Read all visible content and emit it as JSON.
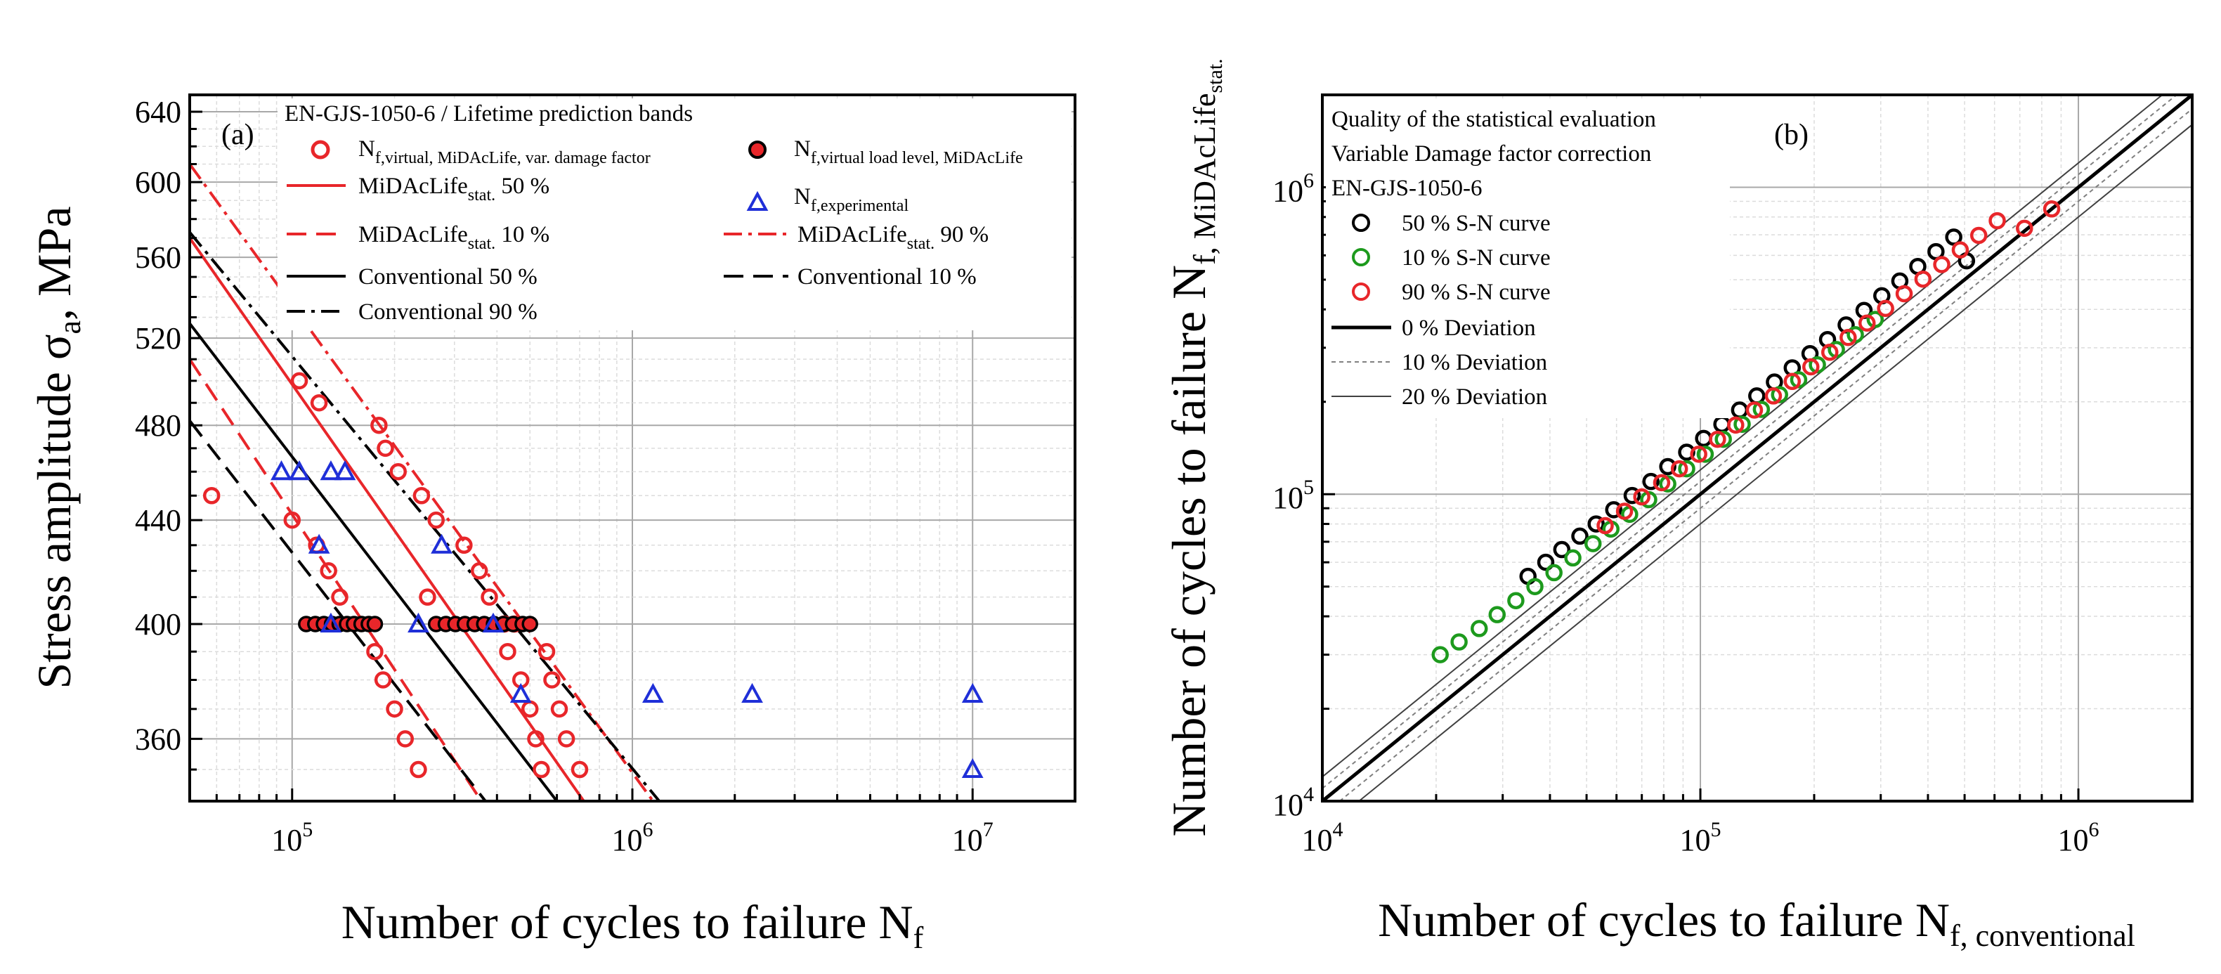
{
  "chart_data": [
    {
      "panel": "a",
      "type": "scatter",
      "panel_label": "(a)",
      "title": "EN-GJS-1050-6 / Lifetime prediction bands",
      "xlabel": "Number of cycles to failure N",
      "xlabel_sub": "f",
      "ylabel": "Stress amplitude σ",
      "ylabel_sub": "a",
      "ylabel_suffix": ", MPa",
      "x_scale": "log",
      "y_scale": "log",
      "xlim": [
        50000,
        20000000
      ],
      "ylim": [
        340,
        650
      ],
      "x_ticks": [
        {
          "value": 100000,
          "base": "10",
          "exp": "5"
        },
        {
          "value": 1000000,
          "base": "10",
          "exp": "6"
        },
        {
          "value": 10000000,
          "base": "10",
          "exp": "7"
        }
      ],
      "y_ticks": [
        360,
        400,
        440,
        480,
        520,
        560,
        600,
        640
      ],
      "y_tick_labels": [
        "360",
        "400",
        "440",
        "480",
        "520",
        "560",
        "600",
        "640"
      ],
      "legend": {
        "placement": "top",
        "entries": [
          {
            "main": "N",
            "sub": "f,virtual, MiDAcLife, var. damage factor",
            "style": "red-circle",
            "color": "#e8262a"
          },
          {
            "main": "N",
            "sub": "f,virtual load level, MiDAcLife",
            "style": "black-filled-circle",
            "color": "#e8262a"
          },
          {
            "main": "MiDAcLife",
            "sub": "stat.",
            "after": " 50 %",
            "style": "red-solid",
            "color": "#e8262a"
          },
          {
            "main": "N",
            "sub": "f,experimental",
            "style": "blue-triangle",
            "color": "#1f2fd8"
          },
          {
            "main": "MiDAcLife",
            "sub": "stat.",
            "after": " 10 %",
            "style": "red-dash",
            "color": "#e8262a"
          },
          {
            "main": "MiDAcLife",
            "sub": "stat.",
            "after": " 90 %",
            "style": "red-dashdot",
            "color": "#e8262a"
          },
          {
            "main": "Conventional 50 %",
            "sub": "",
            "after": "",
            "style": "black-solid",
            "color": "#000000"
          },
          {
            "main": "Conventional 10 %",
            "sub": "",
            "after": "",
            "style": "black-dash",
            "color": "#000000"
          },
          {
            "main": "Conventional 90 %",
            "sub": "",
            "after": "",
            "style": "black-dashdot",
            "color": "#000000"
          }
        ]
      },
      "lines": [
        {
          "name": "MiDAcLife stat. 50 %",
          "color": "#e8262a",
          "dash": "solid",
          "points": [
            [
              50000,
              570
            ],
            [
              720000,
              340
            ]
          ]
        },
        {
          "name": "MiDAcLife stat. 10 %",
          "color": "#e8262a",
          "dash": "dash",
          "points": [
            [
              50000,
              510
            ],
            [
              360000,
              340
            ]
          ]
        },
        {
          "name": "MiDAcLife stat. 90 %",
          "color": "#e8262a",
          "dash": "dashdot",
          "points": [
            [
              50000,
              610
            ],
            [
              1150000,
              340
            ]
          ]
        },
        {
          "name": "Conventional 50 %",
          "color": "#000000",
          "dash": "solid",
          "points": [
            [
              50000,
              527
            ],
            [
              600000,
              340
            ]
          ]
        },
        {
          "name": "Conventional 10 %",
          "color": "#000000",
          "dash": "dash",
          "points": [
            [
              50000,
              482
            ],
            [
              370000,
              340
            ]
          ]
        },
        {
          "name": "Conventional 90 %",
          "color": "#000000",
          "dash": "dashdot",
          "points": [
            [
              50000,
              573
            ],
            [
              1200000,
              340
            ]
          ]
        }
      ],
      "series": [
        {
          "name": "N f,virtual, MiDAcLife, var. damage factor",
          "marker": "open-circle",
          "color": "#e8262a",
          "points": [
            [
              58000,
              450
            ],
            [
              105000,
              500
            ],
            [
              120000,
              490
            ],
            [
              100000,
              440
            ],
            [
              118000,
              430
            ],
            [
              128000,
              420
            ],
            [
              138000,
              410
            ],
            [
              175000,
              390
            ],
            [
              185000,
              380
            ],
            [
              200000,
              370
            ],
            [
              215000,
              360
            ],
            [
              235000,
              350
            ],
            [
              180000,
              480
            ],
            [
              188000,
              470
            ],
            [
              205000,
              460
            ],
            [
              240000,
              450
            ],
            [
              265000,
              440
            ],
            [
              320000,
              430
            ],
            [
              355000,
              420
            ],
            [
              380000,
              410
            ],
            [
              430000,
              390
            ],
            [
              470000,
              380
            ],
            [
              500000,
              370
            ],
            [
              520000,
              360
            ],
            [
              540000,
              350
            ],
            [
              560000,
              390
            ],
            [
              580000,
              380
            ],
            [
              610000,
              370
            ],
            [
              640000,
              360
            ],
            [
              700000,
              350
            ],
            [
              250000,
              410
            ],
            [
              420000,
              400
            ],
            [
              450000,
              400
            ]
          ]
        },
        {
          "name": "N f,virtual load level, MiDAcLife",
          "marker": "filled-circle",
          "color": "#e8262a",
          "points": [
            [
              110000,
              400
            ],
            [
              117000,
              400
            ],
            [
              124000,
              400
            ],
            [
              131000,
              400
            ],
            [
              138000,
              400
            ],
            [
              145000,
              400
            ],
            [
              152000,
              400
            ],
            [
              160000,
              400
            ],
            [
              168000,
              400
            ],
            [
              175000,
              400
            ],
            [
              265000,
              400
            ],
            [
              283000,
              400
            ],
            [
              302000,
              400
            ],
            [
              322000,
              400
            ],
            [
              344000,
              400
            ],
            [
              367000,
              400
            ],
            [
              392000,
              400
            ],
            [
              418000,
              400
            ],
            [
              446000,
              400
            ],
            [
              476000,
              400
            ],
            [
              500000,
              400
            ]
          ]
        },
        {
          "name": "N f,experimental",
          "marker": "open-triangle",
          "color": "#1f2fd8",
          "points": [
            [
              93000,
              460
            ],
            [
              105000,
              460
            ],
            [
              130000,
              460
            ],
            [
              143000,
              460
            ],
            [
              120000,
              430
            ],
            [
              130000,
              400
            ],
            [
              235000,
              400
            ],
            [
              275000,
              430
            ],
            [
              390000,
              400
            ],
            [
              470000,
              375
            ],
            [
              1150000,
              375
            ],
            [
              2250000,
              375
            ],
            [
              10000000,
              375
            ],
            [
              10000000,
              350
            ]
          ]
        }
      ]
    },
    {
      "panel": "b",
      "type": "scatter",
      "panel_label": "(b)",
      "xlabel": "Number of cycles to failure N",
      "xlabel_sub": "f, conventional",
      "ylabel": "Number of cycles to failure N",
      "ylabel_sub": "f, MiDAcLife",
      "ylabel_subsub": "stat.",
      "x_scale": "log",
      "y_scale": "log",
      "xlim": [
        10000,
        2000000
      ],
      "ylim": [
        10000,
        2000000
      ],
      "x_ticks": [
        {
          "value": 10000,
          "base": "10",
          "exp": "4"
        },
        {
          "value": 100000,
          "base": "10",
          "exp": "5"
        },
        {
          "value": 1000000,
          "base": "10",
          "exp": "6"
        }
      ],
      "y_ticks": [
        {
          "value": 10000,
          "base": "10",
          "exp": "4"
        },
        {
          "value": 100000,
          "base": "10",
          "exp": "5"
        },
        {
          "value": 1000000,
          "base": "10",
          "exp": "6"
        }
      ],
      "legend": {
        "placement": "top-left",
        "header": [
          "Quality of the statistical evaluation",
          "Variable Damage factor correction",
          "EN-GJS-1050-6"
        ],
        "entries": [
          {
            "label": "50 % S-N curve",
            "style": "black-circle",
            "color": "#000000"
          },
          {
            "label": "10 % S-N curve",
            "style": "green-circle",
            "color": "#1d9a1d"
          },
          {
            "label": "90 % S-N curve",
            "style": "red-circle",
            "color": "#e8262a"
          },
          {
            "label": "0 % Deviation",
            "style": "thick-solid",
            "color": "#000000"
          },
          {
            "label": "10 % Deviation",
            "style": "thin-dashed",
            "color": "#808080"
          },
          {
            "label": "20 % Deviation",
            "style": "thin-solid",
            "color": "#404040"
          }
        ]
      },
      "reference_lines": [
        {
          "name": "0 % Deviation",
          "factor": 1.0,
          "style": "thick-solid"
        },
        {
          "name": "+10 % Deviation",
          "factor": 1.1,
          "style": "thin-dashed"
        },
        {
          "name": "-10 % Deviation",
          "factor": 0.9,
          "style": "thin-dashed"
        },
        {
          "name": "+20 % Deviation",
          "factor": 1.2,
          "style": "thin-solid"
        },
        {
          "name": "-20 % Deviation",
          "factor": 0.8,
          "style": "thin-solid"
        }
      ],
      "series": [
        {
          "name": "50 % S-N curve",
          "color": "#000000",
          "points": [
            [
              35000,
              54000
            ],
            [
              39000,
              60000
            ],
            [
              43000,
              66000
            ],
            [
              48000,
              73000
            ],
            [
              53000,
              80000
            ],
            [
              59000,
              89000
            ],
            [
              66000,
              99000
            ],
            [
              74000,
              110000
            ],
            [
              82000,
              123000
            ],
            [
              92000,
              137000
            ],
            [
              102000,
              152000
            ],
            [
              114000,
              169000
            ],
            [
              127000,
              188000
            ],
            [
              141000,
              209000
            ],
            [
              157000,
              232000
            ],
            [
              175000,
              258000
            ],
            [
              195000,
              287000
            ],
            [
              217000,
              319000
            ],
            [
              243000,
              356000
            ],
            [
              271000,
              397000
            ],
            [
              302000,
              443000
            ],
            [
              337000,
              495000
            ],
            [
              376000,
              552000
            ],
            [
              420000,
              617000
            ],
            [
              468000,
              688000
            ],
            [
              506000,
              576000
            ]
          ]
        },
        {
          "name": "10 % S-N curve",
          "color": "#1d9a1d",
          "points": [
            [
              20500,
              30000
            ],
            [
              23000,
              33000
            ],
            [
              26000,
              36500
            ],
            [
              29000,
              40500
            ],
            [
              32500,
              45000
            ],
            [
              36500,
              50000
            ],
            [
              41000,
              55500
            ],
            [
              46000,
              62000
            ],
            [
              52000,
              69000
            ],
            [
              58000,
              77000
            ],
            [
              65000,
              86000
            ],
            [
              73000,
              96000
            ],
            [
              82000,
              108000
            ],
            [
              92000,
              121000
            ],
            [
              103000,
              135000
            ],
            [
              115000,
              151000
            ],
            [
              129000,
              169000
            ],
            [
              145000,
              189000
            ],
            [
              162000,
              211000
            ],
            [
              182000,
              236000
            ],
            [
              204000,
              264000
            ],
            [
              229000,
              296000
            ],
            [
              257000,
              331000
            ],
            [
              290000,
              371000
            ]
          ]
        },
        {
          "name": "90 % S-N curve",
          "color": "#e8262a",
          "points": [
            [
              56000,
              79000
            ],
            [
              63000,
              88000
            ],
            [
              70000,
              98000
            ],
            [
              79000,
              109000
            ],
            [
              88000,
              121000
            ],
            [
              99000,
              135000
            ],
            [
              111000,
              151000
            ],
            [
              124000,
              168000
            ],
            [
              139000,
              188000
            ],
            [
              156000,
              209000
            ],
            [
              175000,
              233000
            ],
            [
              196000,
              260000
            ],
            [
              220000,
              290000
            ],
            [
              246000,
              324000
            ],
            [
              276000,
              361000
            ],
            [
              309000,
              403000
            ],
            [
              346000,
              450000
            ],
            [
              388000,
              502000
            ],
            [
              435000,
              560000
            ],
            [
              487000,
              625000
            ],
            [
              545000,
              697000
            ],
            [
              610000,
              778000
            ],
            [
              720000,
              735000
            ],
            [
              850000,
              850000
            ]
          ]
        }
      ]
    }
  ]
}
